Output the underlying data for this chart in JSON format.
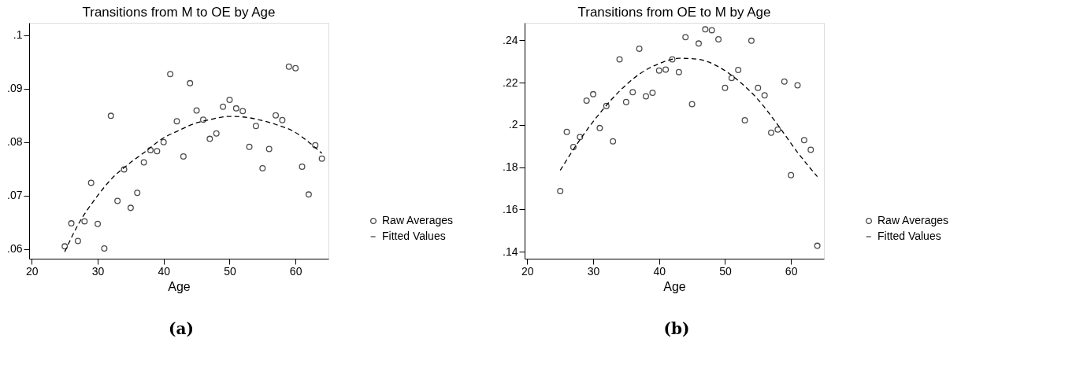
{
  "chart_data": [
    {
      "type": "scatter",
      "title": "Transitions from M to OE by Age",
      "xlabel": "Age",
      "legend": "right",
      "grid": false,
      "xlim": [
        19.6,
        65
      ],
      "xticks": [
        20,
        30,
        40,
        50,
        60
      ],
      "ylim": [
        0.0582,
        0.1023
      ],
      "yticks": [
        {
          "value": 0.06,
          "label": ".06"
        },
        {
          "value": 0.07,
          "label": ".07"
        },
        {
          "value": 0.08,
          "label": ".08"
        },
        {
          "value": 0.09,
          "label": ".09"
        },
        {
          "value": 0.1,
          "label": ".1"
        }
      ],
      "annotations": [
        "(a)"
      ],
      "series": [
        {
          "name": "Raw Averages",
          "marker": "circle",
          "color": "#000000",
          "x": [
            25,
            26,
            27,
            28,
            29,
            30,
            31,
            32,
            33,
            34,
            35,
            36,
            37,
            38,
            39,
            40,
            41,
            42,
            43,
            44,
            45,
            46,
            47,
            48,
            49,
            50,
            51,
            52,
            53,
            54,
            55,
            56,
            57,
            58,
            59,
            60,
            61,
            62,
            63,
            64
          ],
          "values": [
            0.0605,
            0.0648,
            0.0615,
            0.0652,
            0.0724,
            0.0647,
            0.0601,
            0.0849,
            0.069,
            0.0749,
            0.0677,
            0.0705,
            0.0762,
            0.0785,
            0.0783,
            0.08,
            0.0927,
            0.0839,
            0.0773,
            0.091,
            0.0859,
            0.0842,
            0.0806,
            0.0816,
            0.0866,
            0.0879,
            0.0863,
            0.0858,
            0.0791,
            0.083,
            0.0751,
            0.0787,
            0.085,
            0.0841,
            0.0941,
            0.0938,
            0.0754,
            0.0702,
            0.0794,
            0.0769
          ]
        },
        {
          "name": "Fitted Values",
          "type": "line",
          "marker": "none",
          "line_style": "dashed",
          "color": "#000000",
          "x": [
            25,
            27,
            30,
            32,
            35,
            37,
            40,
            42,
            45,
            47,
            50,
            52,
            55,
            57,
            60,
            62,
            64
          ],
          "values": [
            0.0595,
            0.0645,
            0.07,
            0.073,
            0.0762,
            0.078,
            0.0808,
            0.082,
            0.0836,
            0.0842,
            0.0848,
            0.0847,
            0.084,
            0.0833,
            0.0818,
            0.08,
            0.0779
          ]
        }
      ]
    },
    {
      "type": "scatter",
      "title": "Transitions from OE to M by Age",
      "xlabel": "Age",
      "legend": "right",
      "grid": false,
      "xlim": [
        19.6,
        65
      ],
      "xticks": [
        20,
        30,
        40,
        50,
        60
      ],
      "ylim": [
        0.1367,
        0.2483
      ],
      "yticks": [
        {
          "value": 0.14,
          "label": ".14"
        },
        {
          "value": 0.16,
          "label": ".16"
        },
        {
          "value": 0.18,
          "label": ".18"
        },
        {
          "value": 0.2,
          "label": ".2"
        },
        {
          "value": 0.22,
          "label": ".22"
        },
        {
          "value": 0.24,
          "label": ".24"
        }
      ],
      "annotations": [
        "(b)"
      ],
      "series": [
        {
          "name": "Raw Averages",
          "marker": "circle",
          "color": "#000000",
          "x": [
            25,
            26,
            27,
            28,
            29,
            30,
            31,
            32,
            33,
            34,
            35,
            36,
            37,
            38,
            39,
            40,
            41,
            42,
            43,
            44,
            45,
            46,
            47,
            48,
            49,
            50,
            51,
            52,
            53,
            54,
            55,
            56,
            57,
            58,
            59,
            60,
            61,
            62,
            63,
            64
          ],
          "values": [
            0.1687,
            0.1967,
            0.1895,
            0.1943,
            0.2115,
            0.2145,
            0.1985,
            0.209,
            0.1922,
            0.231,
            0.2108,
            0.2155,
            0.236,
            0.2135,
            0.2152,
            0.2257,
            0.2262,
            0.231,
            0.225,
            0.2415,
            0.2098,
            0.2385,
            0.2452,
            0.2448,
            0.2405,
            0.2175,
            0.2222,
            0.226,
            0.2022,
            0.2398,
            0.2175,
            0.214,
            0.1963,
            0.1978,
            0.2205,
            0.1762,
            0.2187,
            0.1928,
            0.1882,
            0.1428
          ]
        },
        {
          "name": "Fitted Values",
          "type": "line",
          "marker": "none",
          "line_style": "dashed",
          "color": "#000000",
          "x": [
            25,
            28,
            31,
            34,
            37,
            40,
            43,
            46,
            49,
            52,
            55,
            58,
            61,
            64
          ],
          "values": [
            0.1785,
            0.193,
            0.2055,
            0.216,
            0.224,
            0.229,
            0.2315,
            0.231,
            0.2275,
            0.221,
            0.212,
            0.2,
            0.187,
            0.1755
          ]
        }
      ]
    }
  ]
}
